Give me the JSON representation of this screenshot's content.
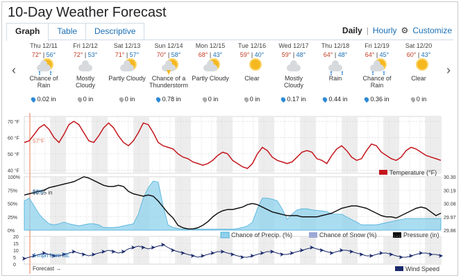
{
  "title": "10-Day Weather Forecast",
  "tabs": [
    {
      "label": "Graph",
      "active": true
    },
    {
      "label": "Table",
      "active": false
    },
    {
      "label": "Descriptive",
      "active": false
    }
  ],
  "modes": {
    "daily": "Daily",
    "hourly": "Hourly",
    "customize": "Customize",
    "separator": "|"
  },
  "days": [
    {
      "date": "Thu 12/11",
      "hi": "72°",
      "lo": "56°",
      "icon": "chance-rain-icon",
      "cond": "Chance of Rain",
      "precip": "0.02 in",
      "drop": "blue"
    },
    {
      "date": "Fri 12/12",
      "hi": "72°",
      "lo": "53°",
      "icon": "cloud-icon",
      "cond": "Mostly Cloudy",
      "precip": "0 in",
      "drop": "grey"
    },
    {
      "date": "Sat 12/13",
      "hi": "71°",
      "lo": "57°",
      "icon": "partly-cloudy-icon",
      "cond": "Partly Cloudy",
      "precip": "0 in",
      "drop": "grey"
    },
    {
      "date": "Sun 12/14",
      "hi": "70°",
      "lo": "58°",
      "icon": "thunderstorm-icon",
      "cond": "Chance of a Thunderstorm",
      "precip": "0.78 in",
      "drop": "blue"
    },
    {
      "date": "Mon 12/15",
      "hi": "68°",
      "lo": "43°",
      "icon": "partly-cloudy-icon",
      "cond": "Partly Cloudy",
      "precip": "0 in",
      "drop": "grey"
    },
    {
      "date": "Tue 12/16",
      "hi": "59°",
      "lo": "40°",
      "icon": "sun-icon",
      "cond": "Clear",
      "precip": "0 in",
      "drop": "grey"
    },
    {
      "date": "Wed 12/17",
      "hi": "59°",
      "lo": "48°",
      "icon": "cloud-icon",
      "cond": "Mostly Cloudy",
      "precip": "0.17 in",
      "drop": "blue"
    },
    {
      "date": "Thu 12/18",
      "hi": "64°",
      "lo": "48°",
      "icon": "rain-icon",
      "cond": "Rain",
      "precip": "0.44 in",
      "drop": "blue"
    },
    {
      "date": "Fri 12/19",
      "hi": "64°",
      "lo": "45°",
      "icon": "chance-rain-icon",
      "cond": "Chance of Rain",
      "precip": "0.36 in",
      "drop": "blue"
    },
    {
      "date": "Sat 12/20",
      "hi": "60°",
      "lo": "43°",
      "icon": "sun-icon",
      "cond": "Clear",
      "precip": "0 in",
      "drop": "grey"
    }
  ],
  "chart": {
    "now_label": "5 am",
    "forecast_label": "Forecast →",
    "temp": {
      "current": "57°F",
      "yticks": [
        "70 °F",
        "60 °F",
        "50 °F",
        "40 °F"
      ],
      "legend": "Temperature (°F)",
      "color": "#c4161c",
      "series": [
        57,
        58,
        62,
        66,
        68,
        65,
        60,
        57,
        62,
        68,
        70,
        68,
        63,
        58,
        57,
        61,
        66,
        69,
        66,
        61,
        57,
        55,
        58,
        63,
        69,
        68,
        63,
        57,
        55,
        54,
        53,
        50,
        48,
        47,
        45,
        44,
        43,
        44,
        46,
        49,
        51,
        50,
        46,
        44,
        42,
        41,
        44,
        50,
        54,
        52,
        48,
        46,
        45,
        44,
        45,
        48,
        51,
        52,
        51,
        47,
        46,
        44,
        49,
        53,
        55,
        52,
        48,
        46,
        47,
        52,
        56,
        55,
        51,
        49,
        47,
        46,
        48,
        52,
        54,
        53,
        51,
        49,
        48,
        47,
        46
      ]
    },
    "precip": {
      "pressure_current": "30.15 in",
      "chance_current": "50%",
      "yticks_left": [
        "100%",
        "75%",
        "50%",
        "25%",
        "0%"
      ],
      "yticks_right": [
        "30.30",
        "30.19",
        "30.08",
        "29.97",
        "29.86"
      ],
      "legend_precip": "Chance of Precip. (%)",
      "legend_snow": "Chance of Snow (%)",
      "legend_pressure": "Pressure (in)",
      "precip_color": "#8fd1ec",
      "snow_color": "#9aa7d6",
      "pressure_color": "#111111",
      "chance_series": [
        55,
        60,
        45,
        30,
        20,
        12,
        10,
        12,
        15,
        12,
        10,
        8,
        10,
        12,
        12,
        10,
        5,
        5,
        5,
        6,
        8,
        10,
        12,
        30,
        60,
        80,
        92,
        90,
        45,
        10,
        5,
        3,
        2,
        2,
        2,
        2,
        2,
        2,
        2,
        2,
        2,
        2,
        2,
        3,
        5,
        8,
        15,
        40,
        60,
        60,
        58,
        55,
        40,
        20,
        30,
        38,
        40,
        40,
        38,
        37,
        36,
        35,
        30,
        30,
        30,
        25,
        20,
        15,
        10,
        10,
        10,
        10,
        12,
        14,
        16,
        18,
        20,
        22,
        22,
        22,
        22,
        22,
        22,
        22,
        22
      ],
      "pressure_series": [
        30.15,
        30.16,
        30.17,
        30.18,
        30.19,
        30.21,
        30.22,
        30.23,
        30.24,
        30.25,
        30.26,
        30.28,
        30.3,
        30.29,
        30.27,
        30.25,
        30.23,
        30.22,
        30.22,
        30.23,
        30.22,
        30.18,
        30.16,
        30.15,
        30.14,
        30.15,
        30.14,
        30.1,
        30.05,
        30.0,
        29.96,
        29.9,
        29.88,
        29.87,
        29.87,
        29.88,
        29.9,
        29.93,
        29.97,
        30.0,
        30.02,
        30.03,
        30.03,
        30.04,
        30.05,
        30.07,
        30.08,
        30.07,
        30.05,
        30.03,
        30.01,
        30.0,
        29.99,
        29.98,
        29.98,
        29.98,
        29.97,
        29.97,
        29.97,
        29.97,
        29.98,
        29.99,
        30.0,
        30.02,
        30.04,
        30.05,
        30.06,
        30.06,
        30.05,
        30.04,
        30.02,
        30.0,
        29.98,
        29.97,
        29.97,
        29.96,
        29.98,
        30.0,
        30.02,
        30.04,
        30.05,
        30.04,
        30.01,
        29.98,
        30.0
      ]
    },
    "wind": {
      "current": "4 mph from SE",
      "yticks": [
        "20",
        "15",
        "10",
        "5",
        "0"
      ],
      "legend": "Wind Speed",
      "color": "#1b2a6b",
      "series": [
        4,
        5,
        6,
        7,
        8,
        7,
        6,
        6,
        7,
        8,
        9,
        8,
        7,
        6,
        7,
        8,
        9,
        10,
        9,
        8,
        9,
        11,
        12,
        13,
        12,
        11,
        12,
        13,
        14,
        12,
        10,
        9,
        8,
        7,
        6,
        5,
        6,
        7,
        8,
        9,
        9,
        8,
        7,
        6,
        5,
        5,
        6,
        7,
        8,
        9,
        9,
        8,
        7,
        7,
        8,
        9,
        10,
        11,
        12,
        11,
        10,
        9,
        8,
        9,
        10,
        10,
        9,
        8,
        7,
        6,
        6,
        7,
        8,
        8,
        7,
        6,
        5,
        5,
        6,
        7,
        8,
        8,
        7,
        7,
        6
      ]
    }
  }
}
